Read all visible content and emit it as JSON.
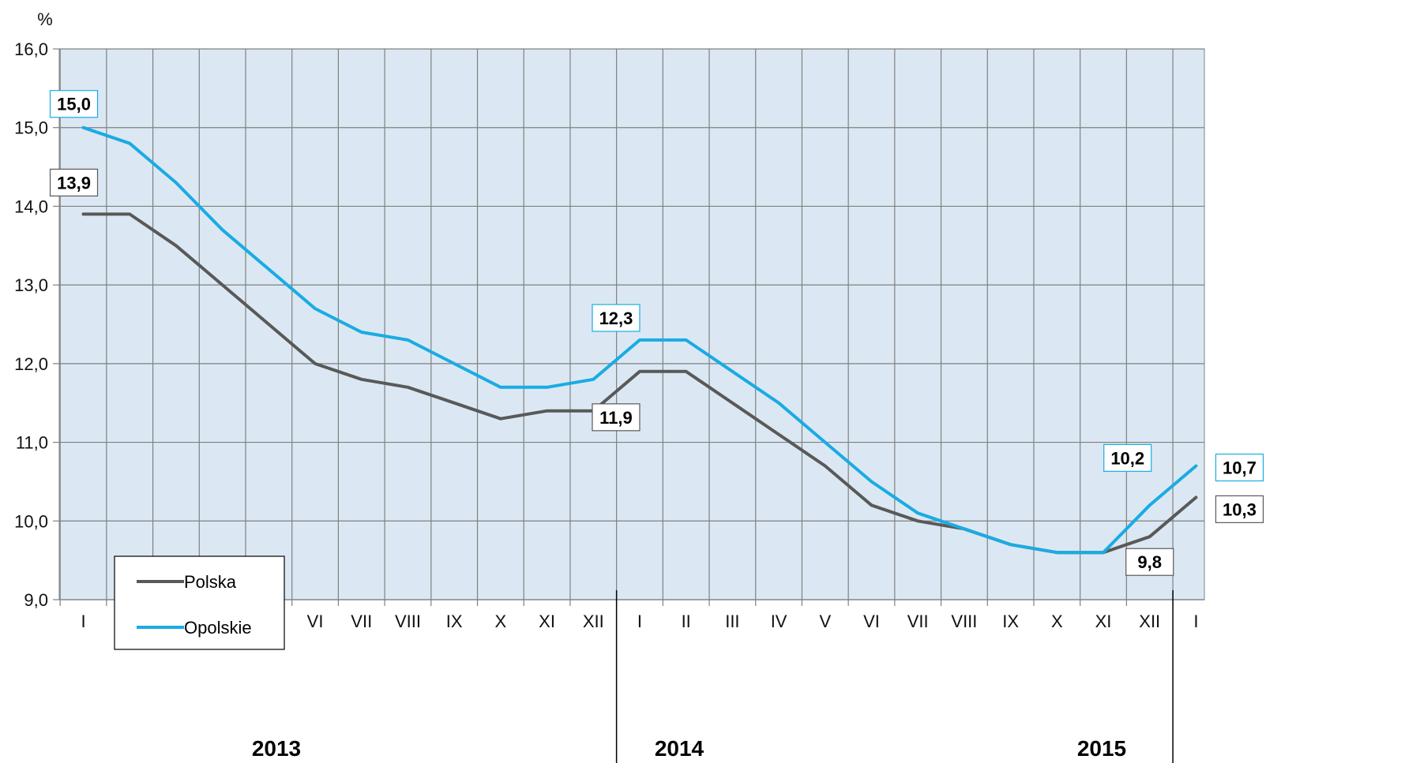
{
  "chart_data": {
    "type": "line",
    "ylabel": "%",
    "ylim": [
      9.0,
      16.0
    ],
    "yticks": [
      "9,0",
      "10,0",
      "11,0",
      "12,0",
      "13,0",
      "14,0",
      "15,0",
      "16,0"
    ],
    "grid": true,
    "plot_background": "#dbe8f3",
    "categories": [
      "I",
      "II",
      "III",
      "IV",
      "V",
      "VI",
      "VII",
      "VIII",
      "IX",
      "X",
      "XI",
      "XII",
      "I",
      "II",
      "III",
      "IV",
      "V",
      "VI",
      "VII",
      "VIII",
      "IX",
      "X",
      "XI",
      "XII",
      "I"
    ],
    "years": [
      {
        "label": "2013"
      },
      {
        "label": "2014"
      },
      {
        "label": "2015"
      }
    ],
    "series": [
      {
        "name": "Polska",
        "color": "#595959",
        "values": [
          13.9,
          13.9,
          13.5,
          13.0,
          12.5,
          12.0,
          11.8,
          11.7,
          11.5,
          11.3,
          11.4,
          11.4,
          11.9,
          11.9,
          11.5,
          11.1,
          10.7,
          10.2,
          10.0,
          9.9,
          9.7,
          9.6,
          9.6,
          9.8,
          10.3
        ]
      },
      {
        "name": "Opolskie",
        "color": "#1aabe3",
        "values": [
          15.0,
          14.8,
          14.3,
          13.7,
          13.2,
          12.7,
          12.4,
          12.3,
          12.0,
          11.7,
          11.7,
          11.8,
          12.3,
          12.3,
          11.9,
          11.5,
          11.0,
          10.5,
          10.1,
          9.9,
          9.7,
          9.6,
          9.6,
          10.2,
          10.7
        ]
      }
    ],
    "data_labels": [
      {
        "series": "Opolskie",
        "index": 0,
        "text": "15,0"
      },
      {
        "series": "Polska",
        "index": 0,
        "text": "13,9"
      },
      {
        "series": "Opolskie",
        "index": 12,
        "text": "12,3"
      },
      {
        "series": "Polska",
        "index": 12,
        "text": "11,9"
      },
      {
        "series": "Opolskie",
        "index": 23,
        "text": "10,2"
      },
      {
        "series": "Polska",
        "index": 23,
        "text": "9,8"
      },
      {
        "series": "Opolskie",
        "index": 24,
        "text": "10,7"
      },
      {
        "series": "Polska",
        "index": 24,
        "text": "10,3"
      }
    ],
    "legend": {
      "placement": "bottom-left",
      "entries": [
        "Polska",
        "Opolskie"
      ]
    }
  }
}
